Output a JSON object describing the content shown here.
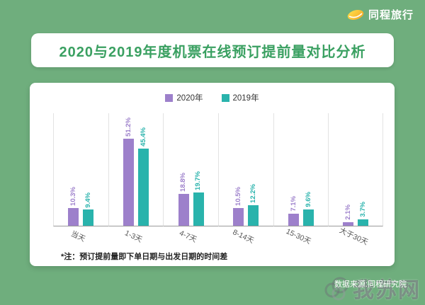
{
  "brand": {
    "logo_text": "同程旅行"
  },
  "title": "2020与2019年度机票在线预订提前量对比分析",
  "note": "*注：预订提前量即下单日期与出发日期的时间差",
  "source": "数据来源:同程研究院",
  "watermark": {
    "text": "我苏网"
  },
  "colors": {
    "background_green": "#6fae7d",
    "title_green": "#3aa061",
    "series_2020_purple": "#9d80cb",
    "series_2019_teal": "#29b3ac"
  },
  "chart_data": {
    "type": "bar",
    "title": "2020与2019年度机票在线预订提前量对比分析",
    "categories": [
      "当天",
      "1-3天",
      "4-7天",
      "8-14天",
      "15-30天",
      "大于30天"
    ],
    "series": [
      {
        "name": "2020年",
        "color": "#9d80cb",
        "values": [
          10.3,
          51.2,
          18.8,
          10.5,
          7.1,
          2.1
        ]
      },
      {
        "name": "2019年",
        "color": "#29b3ac",
        "values": [
          9.4,
          45.4,
          19.7,
          12.2,
          9.6,
          3.7
        ]
      }
    ],
    "value_suffix": "%",
    "ylim": [
      0,
      55
    ],
    "grid": "vertical-separators",
    "legend_position": "top",
    "value_labels": "rotated-90"
  }
}
